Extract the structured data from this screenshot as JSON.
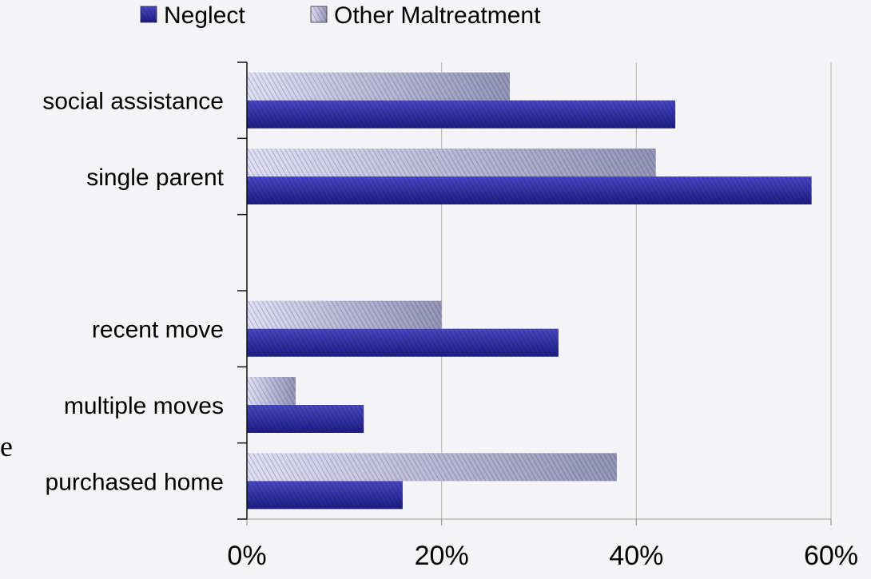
{
  "chart_data": {
    "type": "bar",
    "orientation": "horizontal",
    "categories": [
      "social assistance",
      "single parent",
      "",
      "recent move",
      "multiple moves",
      "purchased home"
    ],
    "series": [
      {
        "name": "Neglect",
        "values": [
          44,
          58,
          null,
          32,
          12,
          16
        ],
        "color": "#2b2b9e"
      },
      {
        "name": "Other Maltreatment",
        "values": [
          27,
          42,
          null,
          20,
          5,
          38
        ],
        "color": "#c8c8ea"
      }
    ],
    "xlim": [
      0,
      60
    ],
    "x_ticks": [
      "0%",
      "20%",
      "40%",
      "60%"
    ],
    "x_tick_values": [
      0,
      20,
      40,
      60
    ],
    "unit": "%",
    "grid": true,
    "legend_position": "top"
  },
  "stray_text": "e"
}
